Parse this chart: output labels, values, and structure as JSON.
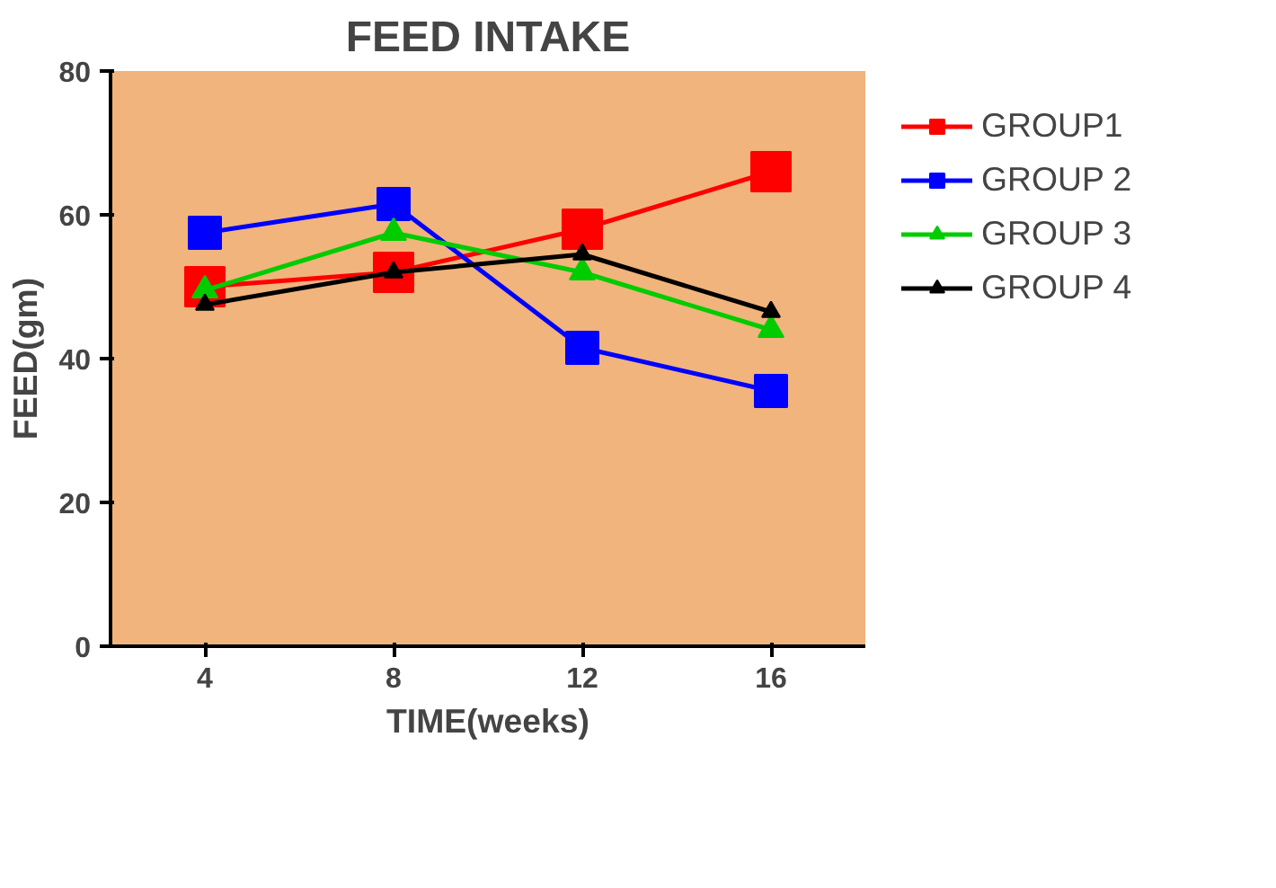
{
  "chart_data": {
    "type": "line",
    "title": "FEED INTAKE",
    "xlabel": "TIME(weeks)",
    "ylabel": "FEED(gm)",
    "x": [
      4,
      8,
      12,
      16
    ],
    "xlim": [
      2,
      18
    ],
    "xticks": [
      4,
      8,
      12,
      16
    ],
    "ylim": [
      0,
      80
    ],
    "yticks": [
      0,
      20,
      40,
      60,
      80
    ],
    "grid": false,
    "legend": "right",
    "line_style": "solid",
    "series": [
      {
        "name": "GROUP1",
        "color": "#ff0000",
        "marker": "square",
        "values": [
          50,
          52,
          58,
          66
        ]
      },
      {
        "name": "GROUP 2",
        "color": "#0000ff",
        "marker": "square",
        "values": [
          57.5,
          61.5,
          41.5,
          35.5
        ]
      },
      {
        "name": "GROUP 3",
        "color": "#00cc00",
        "marker": "triangle",
        "values": [
          49.5,
          57.5,
          52,
          44
        ]
      },
      {
        "name": "GROUP 4",
        "color": "#000000",
        "marker": "triangle",
        "values": [
          47.5,
          52,
          54.5,
          46.5
        ]
      }
    ]
  }
}
